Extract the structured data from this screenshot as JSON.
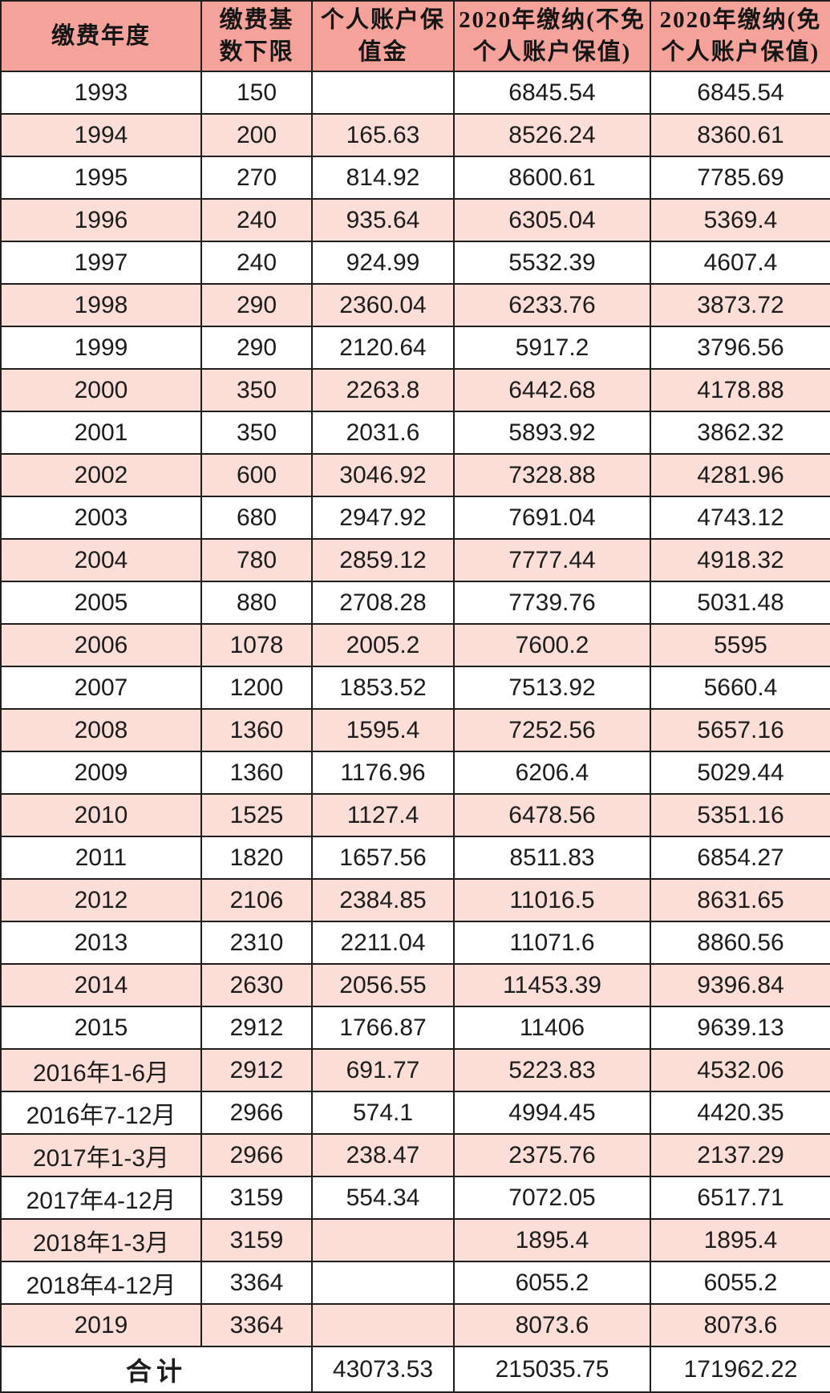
{
  "colors": {
    "header_bg": "#F4A29A",
    "row_pink": "#FBDED8",
    "row_white": "#FFFFFF",
    "border": "#1E1E1E",
    "text": "#1C1C1C"
  },
  "header": {
    "cells": [
      {
        "line1": "缴费年度",
        "line2": ""
      },
      {
        "line1": "缴费基",
        "line2": "数下限"
      },
      {
        "line1": "个人账户保",
        "line2": "值金"
      },
      {
        "line1": "2020年缴纳(不免",
        "line2": "个人账户保值)"
      },
      {
        "line1": "2020年缴纳(免",
        "line2": "个人账户保值)"
      }
    ]
  },
  "total": {
    "label": "合计",
    "values": [
      "43073.53",
      "215035.75",
      "171962.22"
    ]
  },
  "chart_data": {
    "type": "table",
    "title": "",
    "columns": [
      "缴费年度",
      "缴费基数下限",
      "个人账户保值金",
      "2020年缴纳(不免个人账户保值)",
      "2020年缴纳(免个人账户保值)"
    ],
    "rows": [
      [
        "1993",
        "150",
        "",
        "6845.54",
        "6845.54"
      ],
      [
        "1994",
        "200",
        "165.63",
        "8526.24",
        "8360.61"
      ],
      [
        "1995",
        "270",
        "814.92",
        "8600.61",
        "7785.69"
      ],
      [
        "1996",
        "240",
        "935.64",
        "6305.04",
        "5369.4"
      ],
      [
        "1997",
        "240",
        "924.99",
        "5532.39",
        "4607.4"
      ],
      [
        "1998",
        "290",
        "2360.04",
        "6233.76",
        "3873.72"
      ],
      [
        "1999",
        "290",
        "2120.64",
        "5917.2",
        "3796.56"
      ],
      [
        "2000",
        "350",
        "2263.8",
        "6442.68",
        "4178.88"
      ],
      [
        "2001",
        "350",
        "2031.6",
        "5893.92",
        "3862.32"
      ],
      [
        "2002",
        "600",
        "3046.92",
        "7328.88",
        "4281.96"
      ],
      [
        "2003",
        "680",
        "2947.92",
        "7691.04",
        "4743.12"
      ],
      [
        "2004",
        "780",
        "2859.12",
        "7777.44",
        "4918.32"
      ],
      [
        "2005",
        "880",
        "2708.28",
        "7739.76",
        "5031.48"
      ],
      [
        "2006",
        "1078",
        "2005.2",
        "7600.2",
        "5595"
      ],
      [
        "2007",
        "1200",
        "1853.52",
        "7513.92",
        "5660.4"
      ],
      [
        "2008",
        "1360",
        "1595.4",
        "7252.56",
        "5657.16"
      ],
      [
        "2009",
        "1360",
        "1176.96",
        "6206.4",
        "5029.44"
      ],
      [
        "2010",
        "1525",
        "1127.4",
        "6478.56",
        "5351.16"
      ],
      [
        "2011",
        "1820",
        "1657.56",
        "8511.83",
        "6854.27"
      ],
      [
        "2012",
        "2106",
        "2384.85",
        "11016.5",
        "8631.65"
      ],
      [
        "2013",
        "2310",
        "2211.04",
        "11071.6",
        "8860.56"
      ],
      [
        "2014",
        "2630",
        "2056.55",
        "11453.39",
        "9396.84"
      ],
      [
        "2015",
        "2912",
        "1766.87",
        "11406",
        "9639.13"
      ],
      [
        "2016年1-6月",
        "2912",
        "691.77",
        "5223.83",
        "4532.06"
      ],
      [
        "2016年7-12月",
        "2966",
        "574.1",
        "4994.45",
        "4420.35"
      ],
      [
        "2017年1-3月",
        "2966",
        "238.47",
        "2375.76",
        "2137.29"
      ],
      [
        "2017年4-12月",
        "3159",
        "554.34",
        "7072.05",
        "6517.71"
      ],
      [
        "2018年1-3月",
        "3159",
        "",
        "1895.4",
        "1895.4"
      ],
      [
        "2018年4-12月",
        "3364",
        "",
        "6055.2",
        "6055.2"
      ],
      [
        "2019",
        "3364",
        "",
        "8073.6",
        "8073.6"
      ]
    ],
    "total_row": [
      "合计",
      "43073.53",
      "215035.75",
      "171962.22"
    ],
    "layout": {
      "striping": "alternating white/pink starting white",
      "grid": "on"
    }
  }
}
